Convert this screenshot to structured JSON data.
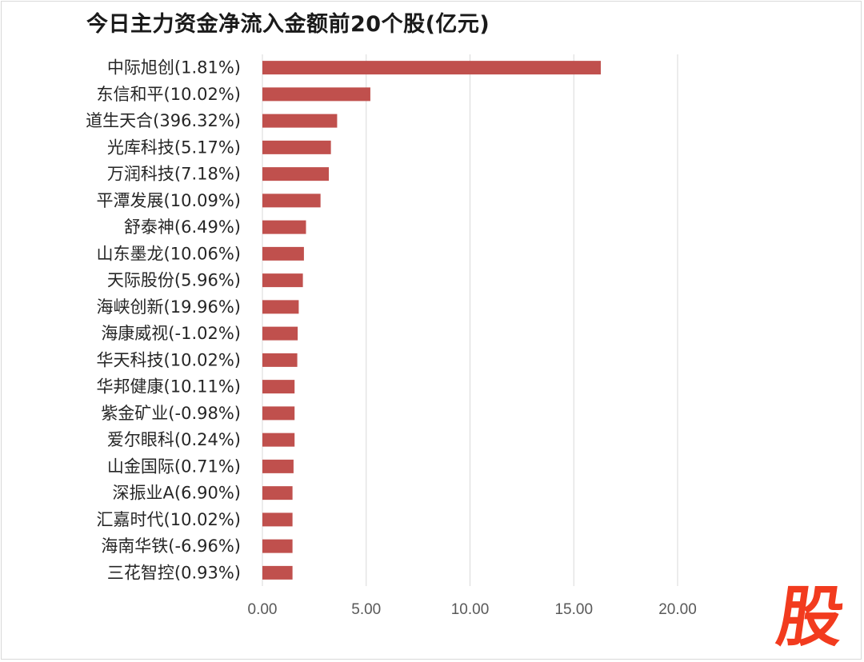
{
  "chart_data": {
    "type": "bar",
    "orientation": "horizontal",
    "title": "今日主力资金净流入金额前20个股(亿元)",
    "categories": [
      "中际旭创(1.81%)",
      "东信和平(10.02%)",
      "道生天合(396.32%)",
      "光库科技(5.17%)",
      "万润科技(7.18%)",
      "平潭发展(10.09%)",
      "舒泰神(6.49%)",
      "山东墨龙(10.06%)",
      "天际股份(5.96%)",
      "海峡创新(19.96%)",
      "海康威视(-1.02%)",
      "华天科技(10.02%)",
      "华邦健康(10.11%)",
      "紫金矿业(-0.98%)",
      "爱尔眼科(0.24%)",
      "山金国际(0.71%)",
      "深振业A(6.90%)",
      "汇嘉时代(10.02%)",
      "海南华铁(-6.96%)",
      "三花智控(0.93%)"
    ],
    "values": [
      16.3,
      5.2,
      3.6,
      3.3,
      3.2,
      2.8,
      2.1,
      2.0,
      1.95,
      1.75,
      1.7,
      1.68,
      1.55,
      1.55,
      1.55,
      1.5,
      1.45,
      1.45,
      1.45,
      1.45
    ],
    "xlim": [
      0,
      20
    ],
    "xticks": [
      "0.00",
      "5.00",
      "10.00",
      "15.00",
      "20.00"
    ],
    "xtick_values": [
      0,
      5,
      10,
      15,
      20
    ],
    "xlabel": "",
    "ylabel": "",
    "grid": "vertical",
    "legend": "none",
    "bar_color": "#c0504d",
    "grid_color": "#d9d9d9"
  },
  "logo": {
    "text": "股",
    "color": "#f23b1e"
  }
}
